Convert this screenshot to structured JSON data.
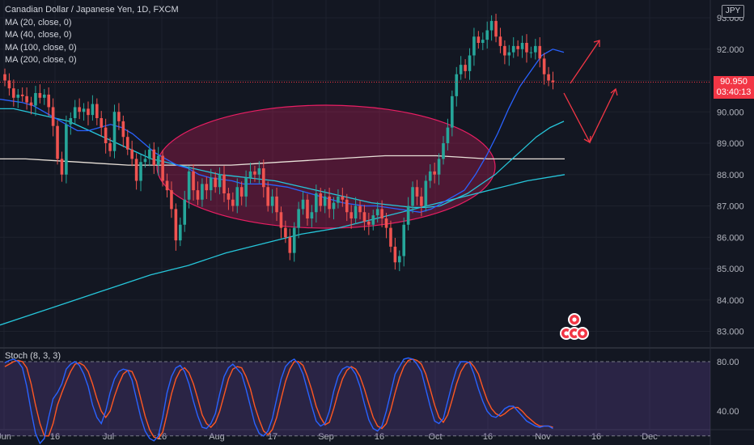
{
  "chart_header": {
    "title": "Canadian Dollar / Japanese Yen, 1D, FXCM",
    "ma_labels": [
      "MA (20, close, 0)",
      "MA (40, close, 0)",
      "MA (100, close, 0)",
      "MA (200, close, 0)"
    ],
    "currency": "JPY"
  },
  "price_tag": {
    "price": "90.950",
    "countdown": "03:40:13"
  },
  "stoch": {
    "label": "Stoch (8, 3, 3)",
    "levels": [
      "80.00",
      "40.00"
    ]
  },
  "colors": {
    "background": "#131722",
    "grid": "#1e222d",
    "up": "#26a69a",
    "down": "#ef5350",
    "ma20": "#2962ff",
    "ma40": "#2196f3",
    "ma100": "#26c6da",
    "ma200": "#e8e0d8",
    "ellipse": "#e91e63",
    "arrow": "#f23645",
    "stoch_k": "#2962ff",
    "stoch_d": "#ff5722",
    "stoch_band": "#7e57c2"
  },
  "chart_data": {
    "type": "candlestick",
    "y_axis_ticks": [
      "93.000",
      "92.000",
      "91.000",
      "90.000",
      "89.000",
      "88.000",
      "87.000",
      "86.000",
      "85.000",
      "84.000",
      "83.000"
    ],
    "x_axis_ticks": [
      "Jun",
      "16",
      "Jul",
      "16",
      "Aug",
      "17",
      "Sep",
      "16",
      "Oct",
      "16",
      "Nov",
      "16",
      "Dec"
    ],
    "ylim": [
      82.6,
      93.4
    ],
    "last_price": 90.95,
    "closes": [
      91.0,
      90.75,
      90.45,
      90.55,
      90.5,
      90.3,
      90.2,
      90.6,
      90.45,
      90.55,
      90.15,
      89.55,
      88.5,
      88.0,
      89.6,
      89.8,
      90.15,
      90.0,
      90.1,
      89.9,
      90.25,
      89.8,
      89.5,
      89.0,
      88.75,
      90.0,
      89.7,
      89.2,
      88.8,
      88.5,
      87.8,
      88.4,
      88.5,
      88.8,
      88.3,
      88.6,
      87.8,
      87.5,
      86.9,
      85.9,
      86.4,
      87.2,
      88.1,
      87.5,
      87.2,
      87.7,
      87.5,
      87.9,
      87.6,
      88.0,
      87.4,
      87.2,
      87.0,
      87.6,
      87.3,
      87.9,
      88.1,
      88.0,
      88.2,
      87.6,
      87.0,
      87.3,
      86.8,
      86.3,
      86.0,
      85.5,
      86.3,
      86.9,
      87.2,
      86.6,
      86.8,
      87.4,
      87.0,
      87.3,
      86.9,
      87.1,
      87.3,
      87.2,
      86.8,
      86.6,
      87.0,
      86.8,
      86.5,
      86.4,
      86.7,
      86.9,
      86.6,
      86.3,
      85.7,
      85.2,
      85.4,
      86.4,
      87.0,
      87.6,
      87.3,
      87.0,
      87.8,
      88.1,
      88.0,
      88.5,
      89.0,
      89.5,
      90.5,
      91.2,
      91.5,
      91.3,
      91.8,
      92.4,
      92.2,
      92.3,
      92.6,
      92.9,
      92.4,
      92.1,
      91.8,
      91.9,
      92.1,
      92.0,
      92.2,
      91.9,
      91.9,
      92.1,
      91.7,
      91.2,
      91.0,
      90.95
    ],
    "stoch_k": [
      79,
      81,
      82,
      80,
      75,
      60,
      40,
      22,
      14,
      18,
      35,
      50,
      55,
      62,
      74,
      78,
      80,
      77,
      70,
      60,
      45,
      35,
      30,
      40,
      55,
      66,
      72,
      74,
      73,
      65,
      50,
      35,
      24,
      18,
      16,
      20,
      35,
      55,
      68,
      75,
      77,
      72,
      62,
      48,
      36,
      27,
      26,
      30,
      38,
      54,
      68,
      75,
      78,
      74,
      70,
      58,
      44,
      30,
      22,
      20,
      24,
      34,
      50,
      66,
      76,
      80,
      82,
      78,
      70,
      57,
      44,
      32,
      28,
      30,
      40,
      56,
      68,
      74,
      76,
      75,
      70,
      60,
      46,
      33,
      26,
      24,
      28,
      40,
      55,
      70,
      76,
      82,
      83,
      82,
      78,
      72,
      58,
      44,
      32,
      30,
      34,
      48,
      62,
      74,
      80,
      80,
      79,
      70,
      58,
      48,
      40,
      36,
      35,
      38,
      42,
      44,
      44,
      40,
      36,
      32,
      30,
      28,
      27,
      28,
      28,
      26
    ],
    "stoch_d": [
      76,
      78,
      80,
      81,
      80,
      75,
      62,
      45,
      30,
      20,
      20,
      30,
      45,
      55,
      64,
      72,
      78,
      79,
      77,
      72,
      62,
      50,
      40,
      35,
      40,
      52,
      62,
      70,
      73,
      72,
      64,
      50,
      36,
      25,
      19,
      18,
      23,
      38,
      54,
      66,
      73,
      75,
      71,
      62,
      50,
      37,
      30,
      27,
      31,
      40,
      53,
      66,
      74,
      76,
      75,
      68,
      58,
      44,
      33,
      24,
      21,
      25,
      35,
      50,
      64,
      74,
      80,
      80,
      77,
      68,
      57,
      44,
      35,
      29,
      31,
      42,
      55,
      66,
      73,
      76,
      74,
      68,
      58,
      46,
      35,
      28,
      26,
      30,
      41,
      55,
      67,
      76,
      81,
      82,
      81,
      78,
      70,
      58,
      45,
      35,
      31,
      37,
      49,
      62,
      72,
      78,
      80,
      76,
      70,
      59,
      49,
      42,
      38,
      36,
      38,
      41,
      43,
      43,
      40,
      36,
      33,
      30,
      28,
      28,
      28,
      27
    ],
    "ma20": [
      90.4,
      90.35,
      90.3,
      90.2,
      90.0,
      89.8,
      89.6,
      89.4,
      89.4,
      89.5,
      89.6,
      89.5,
      89.3,
      89.0,
      88.7,
      88.5,
      88.3,
      88.2,
      88.0,
      87.9,
      87.85,
      87.8,
      87.7,
      87.7,
      87.7,
      87.65,
      87.6,
      87.5,
      87.4,
      87.3,
      87.2,
      87.1,
      87.05,
      87.0,
      87.0,
      86.95,
      86.9,
      86.85,
      86.8,
      86.9,
      87.1,
      87.3,
      87.5,
      88.0,
      88.6,
      89.3,
      90.1,
      90.8,
      91.3,
      91.8,
      92.0,
      91.9
    ],
    "ma40": [
      90.1,
      90.1,
      90.0,
      89.9,
      89.8,
      89.7,
      89.5,
      89.3,
      89.1,
      88.9,
      88.7,
      88.5,
      88.4,
      88.3,
      88.2,
      88.1,
      88.0,
      87.95,
      87.9,
      87.85,
      87.8,
      87.7,
      87.6,
      87.5,
      87.4,
      87.3,
      87.2,
      87.1,
      87.05,
      87.0,
      86.95,
      86.95,
      87.0,
      87.2,
      87.4,
      87.7,
      88.0,
      88.4,
      88.8,
      89.2,
      89.5,
      89.7
    ],
    "ma100": [
      88.5,
      88.5,
      88.45,
      88.4,
      88.35,
      88.3,
      88.3,
      88.3,
      88.3,
      88.3,
      88.35,
      88.4,
      88.45,
      88.5,
      88.55,
      88.6,
      88.6,
      88.6,
      88.55,
      88.5,
      88.5,
      88.5,
      88.5
    ],
    "ma200": [
      83.2,
      83.6,
      84.0,
      84.4,
      84.8,
      85.1,
      85.5,
      85.8,
      86.1,
      86.3,
      86.6,
      86.9,
      87.2,
      87.5,
      87.8,
      88.0
    ]
  }
}
